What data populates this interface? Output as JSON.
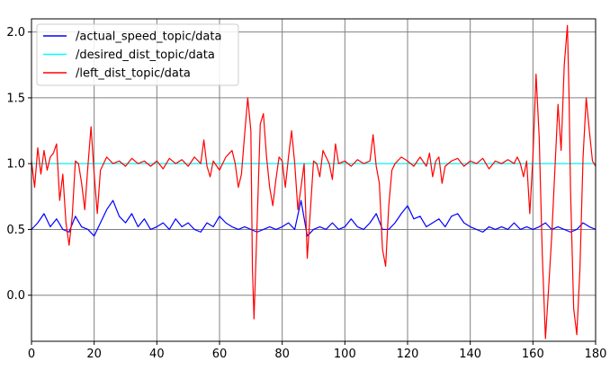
{
  "chart_data": {
    "type": "line",
    "title": "",
    "xlabel": "",
    "ylabel": "",
    "xlim": [
      0,
      180
    ],
    "ylim": [
      -0.35,
      2.1
    ],
    "grid": true,
    "legend_position": "top-left",
    "xticks": [
      0,
      20,
      40,
      60,
      80,
      100,
      120,
      140,
      160,
      180
    ],
    "yticks": [
      0.0,
      0.5,
      1.0,
      1.5,
      2.0
    ],
    "xtick_labels": [
      "0",
      "20",
      "40",
      "60",
      "80",
      "100",
      "120",
      "140",
      "160",
      "180"
    ],
    "ytick_labels": [
      "0.0",
      "0.5",
      "1.0",
      "1.5",
      "2.0"
    ],
    "series": [
      {
        "name": "/actual_speed_topic/data",
        "color": "#0000ff",
        "x": [
          0,
          2,
          4,
          6,
          8,
          10,
          12,
          14,
          16,
          18,
          20,
          22,
          24,
          26,
          28,
          30,
          32,
          34,
          36,
          38,
          40,
          42,
          44,
          46,
          48,
          50,
          52,
          54,
          56,
          58,
          60,
          62,
          64,
          66,
          68,
          70,
          72,
          74,
          76,
          78,
          80,
          82,
          84,
          86,
          88,
          90,
          92,
          94,
          96,
          98,
          100,
          102,
          104,
          106,
          108,
          110,
          112,
          114,
          116,
          118,
          120,
          122,
          124,
          126,
          128,
          130,
          132,
          134,
          136,
          138,
          140,
          142,
          144,
          146,
          148,
          150,
          152,
          154,
          156,
          158,
          160,
          162,
          164,
          166,
          168,
          170,
          172,
          174,
          176,
          178,
          180
        ],
        "y": [
          0.5,
          0.55,
          0.62,
          0.52,
          0.58,
          0.5,
          0.48,
          0.6,
          0.52,
          0.5,
          0.45,
          0.55,
          0.65,
          0.72,
          0.6,
          0.55,
          0.62,
          0.52,
          0.58,
          0.5,
          0.52,
          0.55,
          0.5,
          0.58,
          0.52,
          0.55,
          0.5,
          0.48,
          0.55,
          0.52,
          0.6,
          0.55,
          0.52,
          0.5,
          0.52,
          0.5,
          0.48,
          0.5,
          0.52,
          0.5,
          0.52,
          0.55,
          0.5,
          0.72,
          0.45,
          0.5,
          0.52,
          0.5,
          0.55,
          0.5,
          0.52,
          0.58,
          0.52,
          0.5,
          0.55,
          0.62,
          0.5,
          0.5,
          0.55,
          0.62,
          0.68,
          0.58,
          0.6,
          0.52,
          0.55,
          0.58,
          0.52,
          0.6,
          0.62,
          0.55,
          0.52,
          0.5,
          0.48,
          0.52,
          0.5,
          0.52,
          0.5,
          0.55,
          0.5,
          0.52,
          0.5,
          0.52,
          0.55,
          0.5,
          0.52,
          0.5,
          0.48,
          0.5,
          0.55,
          0.52,
          0.5
        ]
      },
      {
        "name": "/desired_dist_topic/data",
        "color": "#00ffff",
        "x": [
          0,
          180
        ],
        "y": [
          1.0,
          1.0
        ]
      },
      {
        "name": "/left_dist_topic/data",
        "color": "#ff0000",
        "x": [
          0,
          1,
          2,
          3,
          4,
          5,
          6,
          7,
          8,
          9,
          10,
          11,
          12,
          13,
          14,
          15,
          16,
          17,
          18,
          19,
          20,
          21,
          22,
          24,
          26,
          28,
          30,
          32,
          34,
          36,
          38,
          40,
          42,
          44,
          46,
          48,
          50,
          52,
          54,
          55,
          56,
          57,
          58,
          60,
          62,
          64,
          65,
          66,
          67,
          68,
          69,
          70,
          70.5,
          71,
          72,
          73,
          74,
          75,
          76,
          77,
          78,
          79,
          80,
          81,
          82,
          83,
          84,
          85,
          86,
          87,
          88,
          89,
          90,
          91,
          92,
          93,
          94,
          95,
          96,
          97,
          98,
          100,
          102,
          104,
          106,
          108,
          109,
          110,
          111,
          112,
          113,
          114,
          115,
          116,
          118,
          120,
          122,
          124,
          126,
          127,
          128,
          129,
          130,
          131,
          132,
          134,
          136,
          138,
          140,
          142,
          144,
          146,
          148,
          150,
          152,
          154,
          155,
          156,
          157,
          158,
          159,
          160,
          161,
          162,
          163,
          164,
          165,
          166,
          167,
          168,
          169,
          170,
          171,
          171.5,
          172,
          173,
          174,
          175,
          176,
          177,
          178,
          179,
          180
        ],
        "y": [
          1.02,
          0.82,
          1.12,
          0.92,
          1.1,
          0.95,
          1.05,
          1.08,
          1.15,
          0.72,
          0.92,
          0.55,
          0.38,
          0.6,
          1.02,
          1.0,
          0.85,
          0.65,
          0.98,
          1.28,
          0.92,
          0.62,
          0.95,
          1.05,
          1.0,
          1.02,
          0.98,
          1.04,
          1.0,
          1.02,
          0.98,
          1.02,
          0.96,
          1.04,
          1.0,
          1.03,
          0.98,
          1.05,
          1.0,
          1.18,
          0.98,
          0.9,
          1.02,
          0.95,
          1.05,
          1.1,
          1.0,
          0.82,
          0.92,
          1.22,
          1.5,
          1.25,
          0.2,
          -0.18,
          0.55,
          1.3,
          1.38,
          1.05,
          0.82,
          0.68,
          0.88,
          1.05,
          1.02,
          0.82,
          1.05,
          1.25,
          1.0,
          0.65,
          0.82,
          1.0,
          0.28,
          0.65,
          1.02,
          1.0,
          0.9,
          1.1,
          1.05,
          1.0,
          0.88,
          1.15,
          1.0,
          1.02,
          0.98,
          1.03,
          1.0,
          1.02,
          1.22,
          0.98,
          0.85,
          0.35,
          0.22,
          0.68,
          0.95,
          1.0,
          1.05,
          1.02,
          0.98,
          1.05,
          0.98,
          1.08,
          0.9,
          1.02,
          1.05,
          0.85,
          0.98,
          1.02,
          1.04,
          0.98,
          1.02,
          1.0,
          1.04,
          0.96,
          1.02,
          1.0,
          1.03,
          1.0,
          1.05,
          1.0,
          0.9,
          1.02,
          0.62,
          1.05,
          1.68,
          1.2,
          0.3,
          -0.33,
          0.05,
          0.45,
          0.95,
          1.45,
          1.1,
          1.75,
          2.05,
          1.55,
          0.8,
          -0.1,
          -0.3,
          0.2,
          1.05,
          1.5,
          1.25,
          1.02,
          0.98
        ]
      }
    ]
  }
}
